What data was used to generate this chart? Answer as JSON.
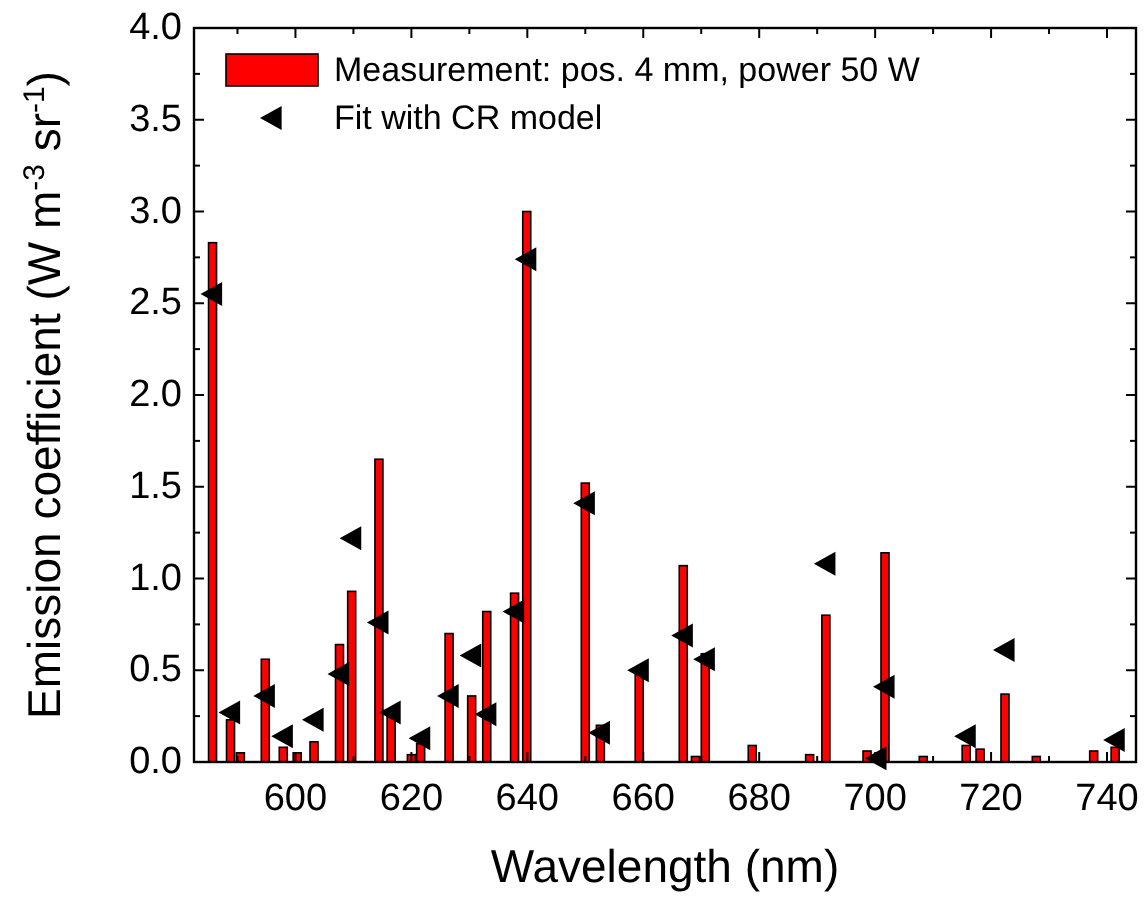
{
  "chart_data": {
    "type": "bar",
    "xlabel": "Wavelength (nm)",
    "ylabel": "Emission coefficient (W m$^{-3}$ sr$^{-1}$)",
    "xlim": [
      582.5,
      745
    ],
    "ylim": [
      0,
      4.0
    ],
    "xticks": [
      {
        "value": 590,
        "label": null
      },
      600,
      {
        "value": 610,
        "label": null
      },
      620,
      {
        "value": 630,
        "label": null
      },
      640,
      {
        "value": 650,
        "label": null
      },
      660,
      {
        "value": 670,
        "label": null
      },
      680,
      {
        "value": 690,
        "label": null
      },
      700,
      {
        "value": 710,
        "label": null
      },
      720,
      {
        "value": 730,
        "label": null
      },
      740
    ],
    "yticks": [
      {
        "value": 0,
        "label": "0.0"
      },
      {
        "value": 0.25,
        "label": null
      },
      {
        "value": 0.5,
        "label": "0.5"
      },
      {
        "value": 0.75,
        "label": null
      },
      {
        "value": 1,
        "label": "1.0"
      },
      {
        "value": 1.25,
        "label": null
      },
      {
        "value": 1.5,
        "label": "1.5"
      },
      {
        "value": 1.75,
        "label": null
      },
      {
        "value": 2,
        "label": "2.0"
      },
      {
        "value": 2.25,
        "label": null
      },
      {
        "value": 2.5,
        "label": "2.5"
      },
      {
        "value": 2.75,
        "label": null
      },
      {
        "value": 3,
        "label": "3.0"
      },
      {
        "value": 3.25,
        "label": null
      },
      {
        "value": 3.5,
        "label": "3.5"
      },
      {
        "value": 3.75,
        "label": null
      },
      {
        "value": 4,
        "label": "4.0"
      }
    ],
    "legend": "top left",
    "grid": false,
    "series": [
      {
        "name": "Measurement: pos. 4 mm, power 50 W",
        "color": "#ff0000",
        "x": [
          585.7,
          588.8,
          590.5,
          594.8,
          597.9,
          600.3,
          603.2,
          607.6,
          609.7,
          614.4,
          616.5,
          620,
          621.6,
          626.5,
          630.4,
          633,
          637.8,
          639.9,
          650,
          652.6,
          659.3,
          666.9,
          669,
          670.7,
          678.8,
          688.7,
          691.5,
          698.6,
          701.7,
          708.3,
          715.7,
          718.1,
          722.4,
          727.8,
          737.7,
          741.4
        ],
        "values": [
          2.83,
          0.23,
          0.05,
          0.56,
          0.08,
          0.05,
          0.11,
          0.64,
          0.93,
          1.65,
          0.27,
          0.04,
          0.1,
          0.7,
          0.36,
          0.82,
          0.92,
          3.0,
          1.52,
          0.2,
          0.49,
          1.07,
          0.03,
          0.59,
          0.09,
          0.04,
          0.8,
          0.06,
          1.14,
          0.03,
          0.09,
          0.07,
          0.37,
          0.03,
          0.06,
          0.08
        ]
      },
      {
        "name": "Fit with CR model",
        "type": "scatter",
        "color": "#000000",
        "marker": "triangle",
        "x": [
          585.7,
          588.8,
          594.8,
          597.9,
          603.2,
          607.6,
          609.7,
          614.4,
          616.5,
          621.6,
          626.5,
          630.4,
          633,
          637.8,
          639.9,
          650,
          652.6,
          659.3,
          666.9,
          670.7,
          691.5,
          700.3,
          701.7,
          715.7,
          722.4,
          741.4
        ],
        "values": [
          2.55,
          0.27,
          0.36,
          0.14,
          0.23,
          0.48,
          1.22,
          0.76,
          0.27,
          0.13,
          0.36,
          0.58,
          0.26,
          0.82,
          2.74,
          1.41,
          0.16,
          0.5,
          0.69,
          0.56,
          1.08,
          0.02,
          0.41,
          0.14,
          0.61,
          0.12
        ]
      }
    ]
  }
}
